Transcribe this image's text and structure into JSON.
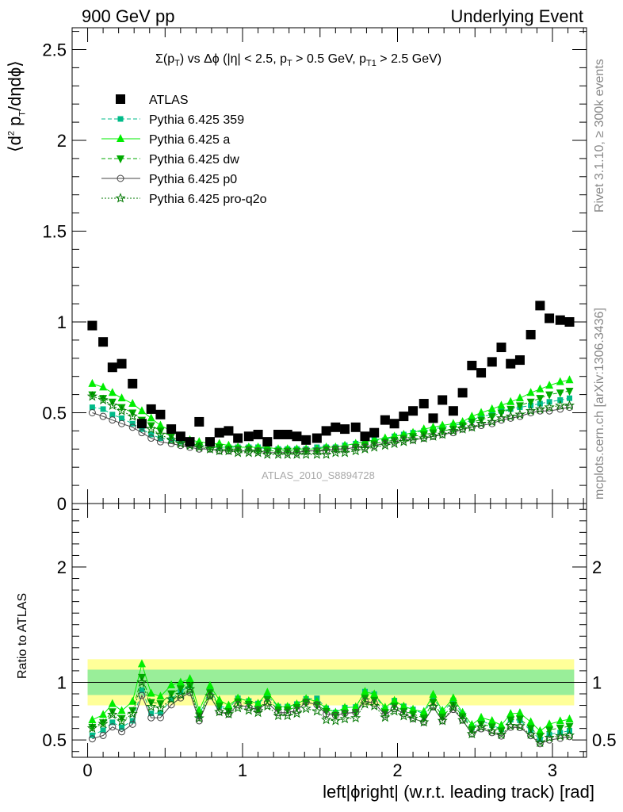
{
  "header": {
    "left": "900 GeV pp",
    "right": "Underlying Event"
  },
  "side_text": {
    "rivet": "Rivet 3.1.10, ≥ 300k events",
    "mcplots": "mcplots.cern.ch [arXiv:1306.3436]"
  },
  "watermark": "ATLAS_2010_S8894728",
  "subtitle": {
    "a": "Σ(p",
    "a_sub": "T",
    "b": ") vs Δϕ (|η| < 2.5, p",
    "b_sub": "T",
    "c": " > 0.5 GeV, p",
    "c_sub": "T1",
    "d": " > 2.5 GeV)"
  },
  "ylabel_top": {
    "a": "⟨d",
    "a_sup": "2",
    "b": " p",
    "b_sub": "T",
    "c": "/dηdϕ⟩"
  },
  "ylabel_bottom": "Ratio to ATLAS",
  "xlabel": "left|ϕright| (w.r.t. leading track) [rad]",
  "colors": {
    "atlas": "#000000",
    "p359": "#00bb88",
    "pa": "#00ee00",
    "pdw": "#00aa00",
    "pp0": "#444444",
    "pq2o": "#007700",
    "band_inner": "#99ee99",
    "band_outer": "#ffff99"
  },
  "chart_data": [
    {
      "type": "scatter",
      "title": "",
      "xlabel": "left|ϕright| (w.r.t. leading track) [rad]",
      "ylabel": "⟨d2 pT/dηdϕ⟩",
      "xlim": [
        -0.1,
        3.22
      ],
      "ylim": [
        0,
        2.62
      ],
      "xticks": [
        "0",
        "1",
        "2",
        "3"
      ],
      "yticks": [
        "0",
        "0.5",
        "1",
        "1.5",
        "2",
        "2.5"
      ],
      "legend_position": "top-left",
      "x": [
        0.03,
        0.1,
        0.16,
        0.22,
        0.29,
        0.35,
        0.41,
        0.47,
        0.54,
        0.6,
        0.66,
        0.72,
        0.79,
        0.85,
        0.91,
        0.97,
        1.04,
        1.1,
        1.16,
        1.23,
        1.29,
        1.35,
        1.41,
        1.48,
        1.54,
        1.6,
        1.66,
        1.73,
        1.79,
        1.85,
        1.92,
        1.98,
        2.04,
        2.1,
        2.17,
        2.23,
        2.29,
        2.36,
        2.42,
        2.48,
        2.54,
        2.61,
        2.67,
        2.73,
        2.79,
        2.86,
        2.92,
        2.98,
        3.05,
        3.11
      ],
      "series": [
        {
          "name": "ATLAS",
          "key": "atlas",
          "marker": "square",
          "values": [
            0.98,
            0.89,
            0.75,
            0.77,
            0.66,
            0.44,
            0.52,
            0.49,
            0.41,
            0.37,
            0.34,
            0.45,
            0.34,
            0.39,
            0.4,
            0.36,
            0.37,
            0.38,
            0.34,
            0.38,
            0.38,
            0.37,
            0.35,
            0.36,
            0.4,
            0.42,
            0.41,
            0.42,
            0.37,
            0.39,
            0.46,
            0.44,
            0.48,
            0.51,
            0.55,
            0.47,
            0.57,
            0.51,
            0.61,
            0.76,
            0.72,
            0.78,
            0.86,
            0.77,
            0.79,
            0.93,
            1.09,
            1.02,
            1.01,
            1.0
          ]
        },
        {
          "name": "Pythia 6.425 359",
          "key": "p359",
          "marker": "smallsquare",
          "dash": "5,3",
          "values": [
            0.53,
            0.52,
            0.49,
            0.47,
            0.44,
            0.41,
            0.38,
            0.36,
            0.35,
            0.34,
            0.33,
            0.32,
            0.32,
            0.31,
            0.31,
            0.31,
            0.31,
            0.31,
            0.3,
            0.3,
            0.3,
            0.3,
            0.3,
            0.31,
            0.31,
            0.31,
            0.32,
            0.33,
            0.34,
            0.35,
            0.35,
            0.37,
            0.38,
            0.39,
            0.4,
            0.41,
            0.42,
            0.43,
            0.44,
            0.46,
            0.48,
            0.49,
            0.51,
            0.52,
            0.53,
            0.54,
            0.55,
            0.56,
            0.57,
            0.58
          ]
        },
        {
          "name": "Pythia 6.425 a",
          "key": "pa",
          "marker": "triangle",
          "dash": "",
          "values": [
            0.66,
            0.64,
            0.61,
            0.58,
            0.55,
            0.51,
            0.47,
            0.43,
            0.4,
            0.37,
            0.35,
            0.34,
            0.33,
            0.33,
            0.32,
            0.31,
            0.31,
            0.31,
            0.31,
            0.3,
            0.3,
            0.3,
            0.3,
            0.3,
            0.31,
            0.31,
            0.32,
            0.33,
            0.34,
            0.35,
            0.36,
            0.37,
            0.38,
            0.39,
            0.41,
            0.42,
            0.43,
            0.44,
            0.45,
            0.48,
            0.5,
            0.52,
            0.54,
            0.56,
            0.58,
            0.61,
            0.63,
            0.65,
            0.67,
            0.68
          ]
        },
        {
          "name": "Pythia 6.425 dw",
          "key": "pdw",
          "marker": "invtriangle",
          "dash": "5,3",
          "values": [
            0.6,
            0.58,
            0.56,
            0.53,
            0.5,
            0.46,
            0.43,
            0.4,
            0.37,
            0.35,
            0.33,
            0.32,
            0.31,
            0.31,
            0.3,
            0.3,
            0.3,
            0.29,
            0.29,
            0.29,
            0.29,
            0.29,
            0.29,
            0.29,
            0.3,
            0.3,
            0.3,
            0.31,
            0.32,
            0.33,
            0.34,
            0.35,
            0.36,
            0.37,
            0.38,
            0.39,
            0.4,
            0.41,
            0.43,
            0.45,
            0.46,
            0.48,
            0.5,
            0.52,
            0.54,
            0.56,
            0.58,
            0.6,
            0.61,
            0.62
          ]
        },
        {
          "name": "Pythia 6.425 p0",
          "key": "pp0",
          "marker": "circle",
          "dash": "",
          "values": [
            0.5,
            0.48,
            0.46,
            0.44,
            0.42,
            0.39,
            0.36,
            0.34,
            0.33,
            0.32,
            0.31,
            0.3,
            0.3,
            0.29,
            0.29,
            0.29,
            0.29,
            0.29,
            0.28,
            0.28,
            0.28,
            0.28,
            0.29,
            0.29,
            0.29,
            0.3,
            0.3,
            0.31,
            0.31,
            0.32,
            0.33,
            0.34,
            0.35,
            0.35,
            0.36,
            0.37,
            0.38,
            0.39,
            0.41,
            0.42,
            0.43,
            0.44,
            0.46,
            0.47,
            0.48,
            0.5,
            0.51,
            0.51,
            0.52,
            0.53
          ]
        },
        {
          "name": "Pythia 6.425 pro-q2o",
          "key": "pq2o",
          "marker": "star",
          "dash": "2,2",
          "values": [
            0.59,
            0.57,
            0.54,
            0.51,
            0.48,
            0.44,
            0.41,
            0.38,
            0.35,
            0.33,
            0.32,
            0.31,
            0.3,
            0.29,
            0.29,
            0.28,
            0.28,
            0.28,
            0.27,
            0.27,
            0.27,
            0.27,
            0.27,
            0.27,
            0.27,
            0.28,
            0.28,
            0.29,
            0.3,
            0.31,
            0.32,
            0.33,
            0.34,
            0.35,
            0.36,
            0.37,
            0.38,
            0.4,
            0.41,
            0.42,
            0.44,
            0.45,
            0.47,
            0.48,
            0.49,
            0.51,
            0.52,
            0.53,
            0.54,
            0.54
          ]
        }
      ]
    },
    {
      "type": "line",
      "title": "",
      "ylabel": "Ratio to ATLAS",
      "xlim": [
        -0.1,
        3.22
      ],
      "ylim": [
        0.35,
        2.55
      ],
      "yticks": [
        "0.5",
        "1",
        "2"
      ],
      "reference_line": 1,
      "band_inner": [
        0.89,
        1.11
      ],
      "band_outer": [
        0.8,
        1.2
      ]
    }
  ]
}
